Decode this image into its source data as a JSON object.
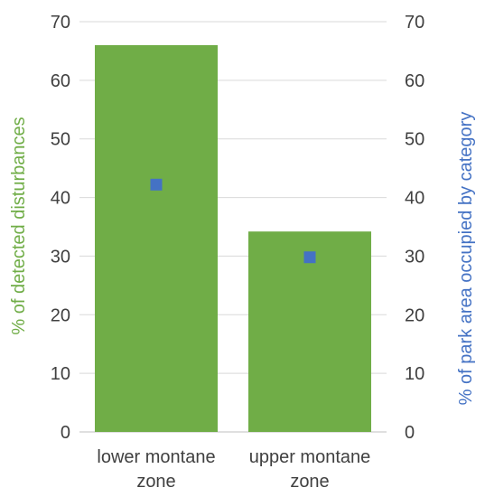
{
  "chart_data": {
    "type": "bar",
    "categories": [
      [
        "lower montane",
        "zone"
      ],
      [
        "upper montane",
        "zone"
      ]
    ],
    "series": [
      {
        "name": "% of detected disturbances",
        "kind": "bar",
        "axis": "left",
        "values": [
          66,
          34.2
        ],
        "color": "#70ad47"
      },
      {
        "name": "% of park area occupied by category",
        "kind": "marker",
        "axis": "right",
        "values": [
          42.2,
          29.8
        ],
        "color": "#4472c4"
      }
    ],
    "ylabel": "% of detected disturbances",
    "y2label": "% of park area occupied by category",
    "ylim": [
      0,
      70
    ],
    "y2lim": [
      0,
      70
    ],
    "yticks": [
      0,
      10,
      20,
      30,
      40,
      50,
      60,
      70
    ],
    "y2ticks": [
      0,
      10,
      20,
      30,
      40,
      50,
      60,
      70
    ],
    "grid": true,
    "gridColor": "#d9d9d9",
    "ylabelColor": "#70ad47",
    "y2labelColor": "#4472c4",
    "legend": "none"
  }
}
